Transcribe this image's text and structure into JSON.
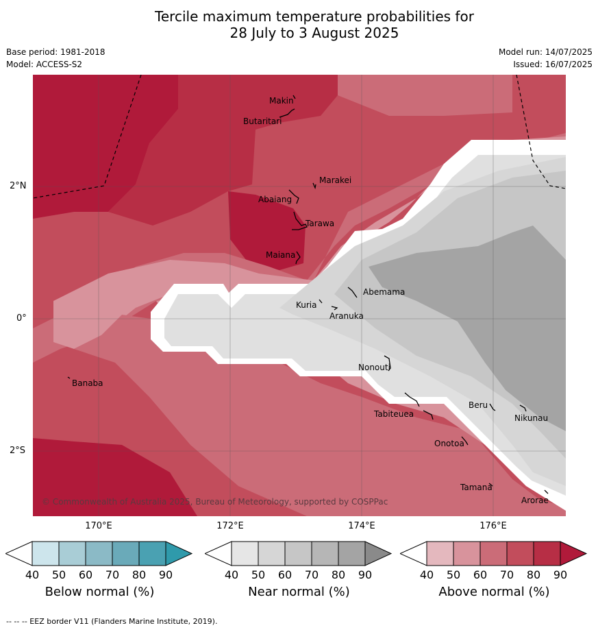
{
  "title_line1": "Tercile maximum temperature probabilities for",
  "title_line2": "28 July to 3 August 2025",
  "base_period": "Base period: 1981-2018",
  "model": "Model: ACCESS-S2",
  "model_run": "Model run: 14/07/2025",
  "issued": "Issued: 16/07/2025",
  "lat_labels": [
    "2°N",
    "0°",
    "2°S"
  ],
  "lon_labels": [
    "170°E",
    "172°E",
    "174°E",
    "176°E"
  ],
  "places": {
    "makin": "Makin",
    "butaritari": "Butaritari",
    "marakei": "Marakei",
    "abaiang": "Abaiang",
    "tarawa": "Tarawa",
    "maiana": "Maiana",
    "abemama": "Abemama",
    "kuria": "Kuria",
    "aranuka": "Aranuka",
    "nonouti": "Nonouti",
    "banaba": "Banaba",
    "beru": "Beru",
    "nikunau": "Nikunau",
    "tabiteuea": "Tabiteuea",
    "onotoa": "Onotoa",
    "tamana": "Tamana",
    "arorae": "Arorae"
  },
  "copyright": "© Commonwealth of Australia 2025, Bureau of Meteorology, supported by COSPPac",
  "legends": [
    {
      "title": "Below normal (%)",
      "ticks": [
        "40",
        "50",
        "60",
        "70",
        "80",
        "90"
      ],
      "colors": [
        "#ffffff",
        "#cde5ec",
        "#a9cdd6",
        "#8bbac6",
        "#6aaab9",
        "#4aa1b2",
        "#2f9aab"
      ]
    },
    {
      "title": "Near normal (%)",
      "ticks": [
        "40",
        "50",
        "60",
        "70",
        "80",
        "90"
      ],
      "colors": [
        "#ffffff",
        "#e6e6e6",
        "#d6d6d6",
        "#c6c6c6",
        "#b6b6b6",
        "#a4a4a4",
        "#8a8a8a"
      ]
    },
    {
      "title": "Above normal (%)",
      "ticks": [
        "40",
        "50",
        "60",
        "70",
        "80",
        "90"
      ],
      "colors": [
        "#ffffff",
        "#e4b8be",
        "#d8939c",
        "#cb6c78",
        "#c24d5c",
        "#b72e45",
        "#b01a3a"
      ]
    }
  ],
  "footer": "-- -- -- EEZ border V11 (Flanders Marine Institute, 2019)."
}
